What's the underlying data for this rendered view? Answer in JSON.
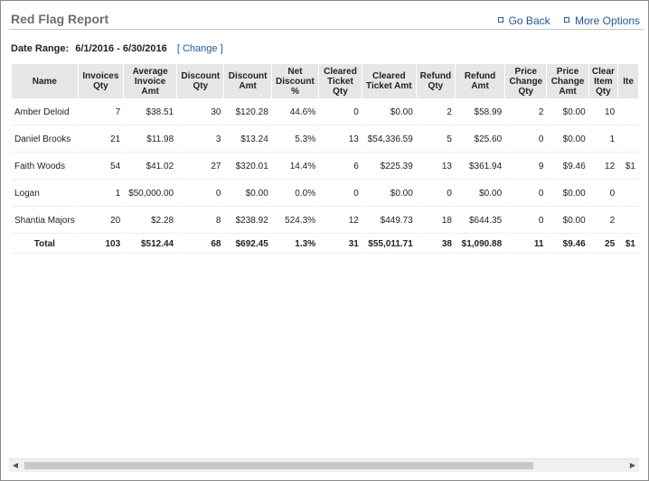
{
  "header": {
    "title": "Red Flag Report",
    "go_back": "Go Back",
    "more_options": "More Options"
  },
  "date_range": {
    "label": "Date Range:",
    "value": "6/1/2016 - 6/30/2016",
    "open_bracket": "[",
    "change": "Change",
    "close_bracket": "]"
  },
  "table": {
    "columns": [
      "Name",
      "Invoices Qty",
      "Average Invoice Amt",
      "Discount Qty",
      "Discount Amt",
      "Net Discount %",
      "Cleared Ticket Qty",
      "Cleared Ticket Amt",
      "Refund Qty",
      "Refund Amt",
      "Price Change Qty",
      "Price Change Amt",
      "Clear Item Qty",
      "Ite"
    ],
    "rows": [
      [
        "Amber Deloid",
        "7",
        "$38.51",
        "30",
        "$120.28",
        "44.6%",
        "0",
        "$0.00",
        "2",
        "$58.99",
        "2",
        "$0.00",
        "10",
        ""
      ],
      [
        "Daniel Brooks",
        "21",
        "$11.98",
        "3",
        "$13.24",
        "5.3%",
        "13",
        "$54,336.59",
        "5",
        "$25.60",
        "0",
        "$0.00",
        "1",
        ""
      ],
      [
        "Faith Woods",
        "54",
        "$41.02",
        "27",
        "$320.01",
        "14.4%",
        "6",
        "$225.39",
        "13",
        "$361.94",
        "9",
        "$9.46",
        "12",
        "$1"
      ],
      [
        "Logan",
        "1",
        "$50,000.00",
        "0",
        "$0.00",
        "0.0%",
        "0",
        "$0.00",
        "0",
        "$0.00",
        "0",
        "$0.00",
        "0",
        ""
      ],
      [
        "Shantia Majors",
        "20",
        "$2.28",
        "8",
        "$238.92",
        "524.3%",
        "12",
        "$449.73",
        "18",
        "$644.35",
        "0",
        "$0.00",
        "2",
        ""
      ]
    ],
    "total": [
      "Total",
      "103",
      "$512.44",
      "68",
      "$692.45",
      "1.3%",
      "31",
      "$55,011.71",
      "38",
      "$1,090.88",
      "11",
      "$9.46",
      "25",
      "$1"
    ]
  },
  "scrollbar": {
    "left_arrow": "◀",
    "right_arrow": "▶"
  }
}
